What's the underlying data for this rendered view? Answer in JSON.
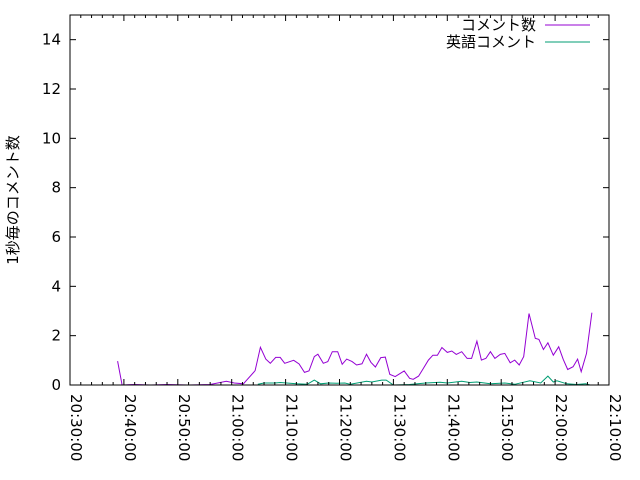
{
  "chart_data": {
    "type": "line",
    "title": "",
    "xlabel": "",
    "ylabel": "1秒毎のコメント数",
    "xlim": [
      "20:30:00",
      "22:10:00"
    ],
    "ylim": [
      0,
      15
    ],
    "x_ticks": [
      "20:30:00",
      "20:40:00",
      "20:50:00",
      "21:00:00",
      "21:10:00",
      "21:20:00",
      "21:30:00",
      "21:40:00",
      "21:50:00",
      "22:00:00",
      "22:10:00"
    ],
    "y_ticks": [
      0,
      2,
      4,
      6,
      8,
      10,
      12,
      14
    ],
    "grid": false,
    "legend_position": "top-right",
    "series": [
      {
        "name": "コメント数",
        "color": "#9400d3",
        "points": [
          [
            "20:38:50",
            0.97
          ],
          [
            "20:39:40",
            0
          ],
          [
            "20:42:00",
            0.02
          ],
          [
            "20:45:00",
            0
          ],
          [
            "20:48:00",
            0.02
          ],
          [
            "20:52:00",
            0
          ],
          [
            "20:56:00",
            0.02
          ],
          [
            "20:59:00",
            0.15
          ],
          [
            "21:00:30",
            0.08
          ],
          [
            "21:02:10",
            0.05
          ],
          [
            "21:04:20",
            0.58
          ],
          [
            "21:05:20",
            1.53
          ],
          [
            "21:06:20",
            1.05
          ],
          [
            "21:07:10",
            0.88
          ],
          [
            "21:08:10",
            1.12
          ],
          [
            "21:09:00",
            1.12
          ],
          [
            "21:09:50",
            0.88
          ],
          [
            "21:11:30",
            1.0
          ],
          [
            "21:12:30",
            0.85
          ],
          [
            "21:13:30",
            0.51
          ],
          [
            "21:14:20",
            0.57
          ],
          [
            "21:15:20",
            1.15
          ],
          [
            "21:16:00",
            1.25
          ],
          [
            "21:17:00",
            0.88
          ],
          [
            "21:17:50",
            0.95
          ],
          [
            "21:18:40",
            1.35
          ],
          [
            "21:19:40",
            1.35
          ],
          [
            "21:20:30",
            0.84
          ],
          [
            "21:21:20",
            1.05
          ],
          [
            "21:22:20",
            0.95
          ],
          [
            "21:23:10",
            0.81
          ],
          [
            "21:24:10",
            0.86
          ],
          [
            "21:25:00",
            1.25
          ],
          [
            "21:25:50",
            0.92
          ],
          [
            "21:26:40",
            0.73
          ],
          [
            "21:27:40",
            1.11
          ],
          [
            "21:28:30",
            1.13
          ],
          [
            "21:29:20",
            0.43
          ],
          [
            "21:30:20",
            0.34
          ],
          [
            "21:32:00",
            0.57
          ],
          [
            "21:33:00",
            0.27
          ],
          [
            "21:33:40",
            0.23
          ],
          [
            "21:34:40",
            0.36
          ],
          [
            "21:35:30",
            0.65
          ],
          [
            "21:36:30",
            1.01
          ],
          [
            "21:37:20",
            1.21
          ],
          [
            "21:38:10",
            1.21
          ],
          [
            "21:39:00",
            1.52
          ],
          [
            "21:40:00",
            1.32
          ],
          [
            "21:40:50",
            1.38
          ],
          [
            "21:41:40",
            1.24
          ],
          [
            "21:42:40",
            1.35
          ],
          [
            "21:43:40",
            1.08
          ],
          [
            "21:44:30",
            1.08
          ],
          [
            "21:45:30",
            1.78
          ],
          [
            "21:46:20",
            1.01
          ],
          [
            "21:47:10",
            1.08
          ],
          [
            "21:48:00",
            1.35
          ],
          [
            "21:48:50",
            1.08
          ],
          [
            "21:49:50",
            1.24
          ],
          [
            "21:50:40",
            1.28
          ],
          [
            "21:51:40",
            0.9
          ],
          [
            "21:52:30",
            1.01
          ],
          [
            "21:53:20",
            0.81
          ],
          [
            "21:54:10",
            1.15
          ],
          [
            "21:55:10",
            2.9
          ],
          [
            "21:56:20",
            1.89
          ],
          [
            "21:57:00",
            1.85
          ],
          [
            "21:57:50",
            1.44
          ],
          [
            "21:58:40",
            1.71
          ],
          [
            "21:59:40",
            1.21
          ],
          [
            "22:00:40",
            1.55
          ],
          [
            "22:01:30",
            1.04
          ],
          [
            "22:02:20",
            0.63
          ],
          [
            "22:03:20",
            0.74
          ],
          [
            "22:04:10",
            1.05
          ],
          [
            "22:04:50",
            0.54
          ],
          [
            "22:05:50",
            1.28
          ],
          [
            "22:06:50",
            2.93
          ]
        ]
      },
      {
        "name": "英語コメント",
        "color": "#009e73",
        "points": [
          [
            "21:04:50",
            0.03
          ],
          [
            "21:06:00",
            0.08
          ],
          [
            "21:08:00",
            0.08
          ],
          [
            "21:09:00",
            0.1
          ],
          [
            "21:12:00",
            0.05
          ],
          [
            "21:14:00",
            0.03
          ],
          [
            "21:15:20",
            0.2
          ],
          [
            "21:16:30",
            0.05
          ],
          [
            "21:18:00",
            0.08
          ],
          [
            "21:19:30",
            0.07
          ],
          [
            "21:21:00",
            0.08
          ],
          [
            "21:22:00",
            0.03
          ],
          [
            "21:25:00",
            0.15
          ],
          [
            "21:26:00",
            0.12
          ],
          [
            "21:27:50",
            0.2
          ],
          [
            "21:28:40",
            0.2
          ],
          [
            "21:30:00",
            0
          ],
          [
            "21:33:00",
            0.02
          ],
          [
            "21:36:00",
            0.08
          ],
          [
            "21:38:40",
            0.11
          ],
          [
            "21:40:00",
            0.08
          ],
          [
            "21:42:40",
            0.15
          ],
          [
            "21:44:10",
            0.1
          ],
          [
            "21:45:30",
            0.12
          ],
          [
            "21:48:00",
            0.05
          ],
          [
            "21:50:40",
            0.08
          ],
          [
            "21:52:30",
            0.03
          ],
          [
            "21:55:20",
            0.17
          ],
          [
            "21:57:20",
            0.08
          ],
          [
            "21:58:40",
            0.36
          ],
          [
            "21:59:40",
            0.12
          ],
          [
            "22:00:20",
            0.17
          ],
          [
            "22:02:10",
            0.05
          ],
          [
            "22:04:00",
            0.02
          ],
          [
            "22:05:40",
            0.05
          ],
          [
            "22:06:30",
            0
          ]
        ]
      }
    ]
  }
}
